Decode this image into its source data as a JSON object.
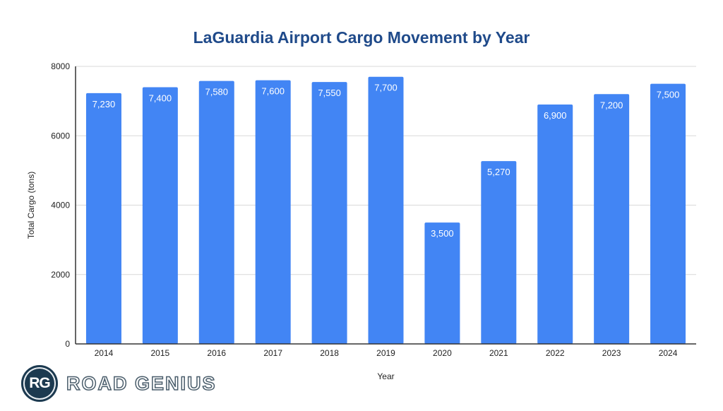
{
  "chart_data": {
    "type": "bar",
    "title": "LaGuardia Airport Cargo Movement by Year",
    "xlabel": "Year",
    "ylabel": "Total Cargo (tons)",
    "categories": [
      "2014",
      "2015",
      "2016",
      "2017",
      "2018",
      "2019",
      "2020",
      "2021",
      "2022",
      "2023",
      "2024"
    ],
    "values": [
      7230,
      7400,
      7580,
      7600,
      7550,
      7700,
      3500,
      5270,
      6900,
      7200,
      7500
    ],
    "data_labels": [
      "7,230",
      "7,400",
      "7,580",
      "7,600",
      "7,550",
      "7,700",
      "3,500",
      "5,270",
      "6,900",
      "7,200",
      "7,500"
    ],
    "ylim": [
      0,
      8000
    ],
    "yticks": [
      0,
      2000,
      4000,
      6000,
      8000
    ],
    "grid": true,
    "bar_color": "#4285f4"
  },
  "logo": {
    "initials": "RG",
    "name": "ROAD GENIUS"
  }
}
